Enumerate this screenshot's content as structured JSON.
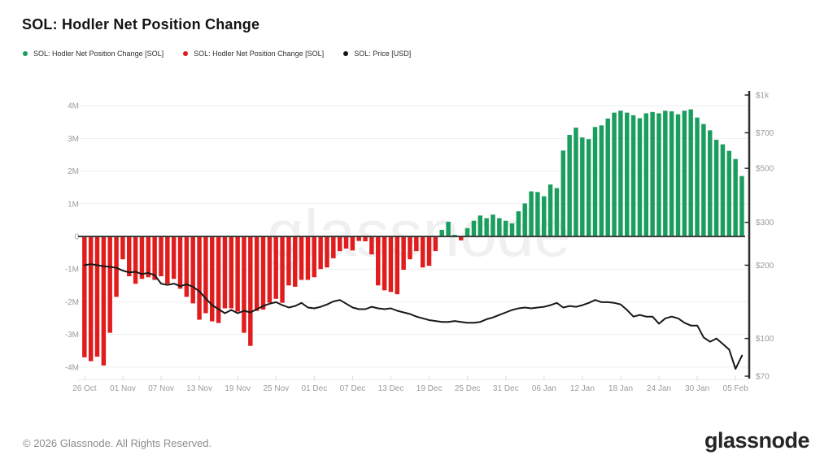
{
  "header": {
    "title": "SOL: Hodler Net Position Change"
  },
  "legend": [
    {
      "label": "SOL: Hodler Net Position Change [SOL]",
      "color": "#1a9e5e"
    },
    {
      "label": "SOL: Hodler Net Position Change [SOL]",
      "color": "#e01c1c"
    },
    {
      "label": "SOL: Price [USD]",
      "color": "#141414"
    }
  ],
  "watermark": {
    "text": "glassnode"
  },
  "footer": {
    "copyright": "© 2026 Glassnode. All Rights Reserved.",
    "logo": "glassnode"
  },
  "chart_data": {
    "type": "bar",
    "title": "SOL: Hodler Net Position Change",
    "grid": true,
    "legend_position": "top-left",
    "x_ticks": [
      {
        "label": "26 Oct",
        "day": 0
      },
      {
        "label": "01 Nov",
        "day": 6
      },
      {
        "label": "07 Nov",
        "day": 12
      },
      {
        "label": "13 Nov",
        "day": 18
      },
      {
        "label": "19 Nov",
        "day": 24
      },
      {
        "label": "25 Nov",
        "day": 30
      },
      {
        "label": "01 Dec",
        "day": 36
      },
      {
        "label": "07 Dec",
        "day": 42
      },
      {
        "label": "13 Dec",
        "day": 48
      },
      {
        "label": "19 Dec",
        "day": 54
      },
      {
        "label": "25 Dec",
        "day": 60
      },
      {
        "label": "31 Dec",
        "day": 66
      },
      {
        "label": "06 Jan",
        "day": 72
      },
      {
        "label": "12 Jan",
        "day": 78
      },
      {
        "label": "18 Jan",
        "day": 84
      },
      {
        "label": "24 Jan",
        "day": 90
      },
      {
        "label": "30 Jan",
        "day": 96
      },
      {
        "label": "05 Feb",
        "day": 102
      }
    ],
    "left_axis": {
      "unit": "SOL (millions)",
      "ylim": [
        -4.5,
        4.5
      ],
      "ticks": [
        {
          "label": "4M",
          "value": 4
        },
        {
          "label": "3M",
          "value": 3
        },
        {
          "label": "2M",
          "value": 2
        },
        {
          "label": "1M",
          "value": 1
        },
        {
          "label": "0",
          "value": 0
        },
        {
          "label": "-1M",
          "value": -1
        },
        {
          "label": "-2M",
          "value": -2
        },
        {
          "label": "-3M",
          "value": -3
        },
        {
          "label": "-4M",
          "value": -4
        }
      ]
    },
    "right_axis": {
      "unit": "USD",
      "scale": "log",
      "ylim": [
        70,
        1000
      ],
      "ticks": [
        {
          "label": "$1k",
          "value": 1000
        },
        {
          "label": "$700",
          "value": 700
        },
        {
          "label": "$500",
          "value": 500
        },
        {
          "label": "$300",
          "value": 300
        },
        {
          "label": "$200",
          "value": 200
        },
        {
          "label": "$100",
          "value": 100
        },
        {
          "label": "$70",
          "value": 70
        }
      ]
    },
    "series": [
      {
        "name": "SOL: Hodler Net Position Change [SOL]",
        "type": "bar",
        "unit": "millions of SOL per day, 26 Oct - 06 Feb",
        "positive_color": "#1a9e5e",
        "negative_color": "#e01c1c",
        "values": [
          -3.7,
          -3.82,
          -3.68,
          -3.95,
          -2.95,
          -1.85,
          -0.7,
          -1.22,
          -1.45,
          -1.3,
          -1.25,
          -1.33,
          -1.22,
          -1.45,
          -1.3,
          -1.6,
          -1.85,
          -2.05,
          -2.55,
          -2.35,
          -2.6,
          -2.65,
          -2.2,
          -2.2,
          -2.3,
          -2.95,
          -3.35,
          -2.28,
          -2.24,
          -2.03,
          -1.91,
          -2.03,
          -1.5,
          -1.54,
          -1.33,
          -1.33,
          -1.25,
          -1.0,
          -0.95,
          -0.67,
          -0.45,
          -0.37,
          -0.43,
          -0.14,
          -0.15,
          -0.55,
          -1.5,
          -1.65,
          -1.7,
          -1.77,
          -1.02,
          -0.7,
          -0.45,
          -0.95,
          -0.9,
          -0.45,
          0.2,
          0.45,
          0.05,
          -0.12,
          0.25,
          0.48,
          0.64,
          0.56,
          0.67,
          0.56,
          0.48,
          0.4,
          0.77,
          1.01,
          1.38,
          1.36,
          1.23,
          1.59,
          1.48,
          2.63,
          3.11,
          3.33,
          3.03,
          2.98,
          3.35,
          3.4,
          3.61,
          3.79,
          3.85,
          3.79,
          3.71,
          3.62,
          3.77,
          3.81,
          3.77,
          3.85,
          3.83,
          3.74,
          3.85,
          3.89,
          3.64,
          3.44,
          3.25,
          2.96,
          2.82,
          2.62,
          2.37,
          1.85
        ]
      },
      {
        "name": "SOL: Price [USD]",
        "type": "line",
        "unit": "USD per day, 26 Oct - 06 Feb",
        "color": "#181818",
        "values": [
          200,
          202,
          200,
          198,
          197,
          195,
          190,
          187,
          188,
          184,
          186,
          182,
          168,
          166,
          168,
          164,
          167,
          163,
          156,
          146,
          137,
          132,
          127,
          131,
          127,
          130,
          128,
          132,
          136,
          139,
          141,
          137,
          134,
          136,
          140,
          134,
          133,
          135,
          138,
          142,
          144,
          139,
          134,
          132,
          132,
          135,
          133,
          132,
          133,
          130,
          128,
          126,
          123,
          121,
          119,
          118,
          117,
          117,
          118,
          117,
          116,
          116,
          117,
          120,
          122,
          125,
          128,
          131,
          133,
          134,
          133,
          134,
          135,
          137,
          140,
          134,
          136,
          135,
          137,
          140,
          144,
          141,
          141,
          140,
          138,
          131,
          123,
          125,
          123,
          123,
          115,
          121,
          123,
          121,
          116,
          113,
          113,
          101,
          97,
          100,
          95,
          90,
          75,
          85
        ]
      }
    ]
  }
}
